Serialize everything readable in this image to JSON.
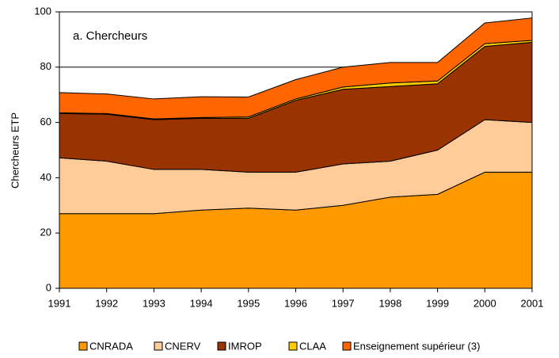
{
  "chart_data": {
    "type": "stacked-area",
    "annotation": "a. Chercheurs",
    "y_label": "Chercheurs ETP",
    "x": [
      1991,
      1992,
      1993,
      1994,
      1995,
      1996,
      1997,
      1998,
      1999,
      2000,
      2001
    ],
    "xlim": [
      1991,
      2001
    ],
    "xticks": [
      1991,
      1992,
      1993,
      1994,
      1995,
      1996,
      1997,
      1998,
      1999,
      2000,
      2001
    ],
    "ylim": [
      0,
      100
    ],
    "yticks": [
      0,
      20,
      40,
      60,
      80,
      100
    ],
    "grid": true,
    "legend": "bottom",
    "series": [
      {
        "name": "CNRADA",
        "color": "#ff9900",
        "values": [
          27,
          27,
          27,
          28.3,
          29,
          28.3,
          30,
          33,
          34,
          42,
          42
        ]
      },
      {
        "name": "CNERV",
        "color": "#ffcc99",
        "values": [
          20.2,
          19,
          16,
          14.7,
          13,
          13.7,
          15,
          13,
          16,
          19,
          18
        ]
      },
      {
        "name": "IMROP",
        "color": "#993300",
        "values": [
          16,
          17,
          18,
          18.5,
          19.5,
          26,
          27,
          27,
          24,
          26.5,
          29
        ]
      },
      {
        "name": "CLAA",
        "color": "#ffcc00",
        "values": [
          0.3,
          0.2,
          0.3,
          0.3,
          0.5,
          0.5,
          0.8,
          1.3,
          1,
          1,
          0.7
        ]
      },
      {
        "name": "Enseignement supérieur (3)",
        "color": "#ff6600",
        "values": [
          7.3,
          7.1,
          7.2,
          7.5,
          7.2,
          7,
          7.2,
          7.4,
          6.7,
          7.5,
          8.1
        ]
      }
    ]
  }
}
